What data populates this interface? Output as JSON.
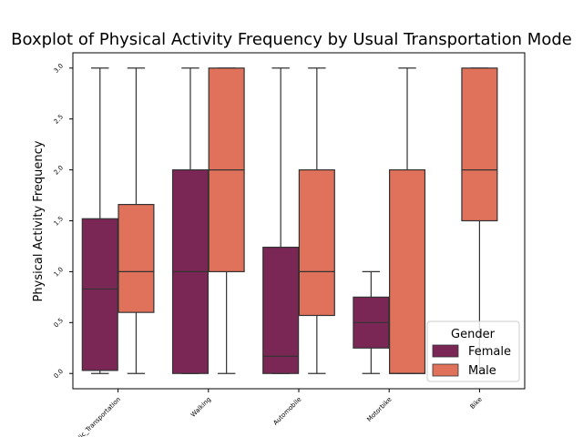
{
  "chart_data": {
    "type": "box",
    "title": "Boxplot of Physical Activity Frequency by Usual Transportation Mode",
    "xlabel": "",
    "ylabel": "Physical Activity Frequency",
    "categories": [
      "Public_Transportation",
      "Walking",
      "Automobile",
      "Motorbike",
      "Bike"
    ],
    "ylim": [
      -0.15,
      3.15
    ],
    "yticks": [
      "0.0",
      "0.5",
      "1.0",
      "1.5",
      "2.0",
      "2.5",
      "3.0"
    ],
    "grid": false,
    "legend": {
      "title": "Gender",
      "position": "lower-right"
    },
    "series": [
      {
        "name": "Female",
        "color": "#7b2756",
        "boxes": [
          {
            "whislo": 0.0,
            "q1": 0.03,
            "med": 0.83,
            "q3": 1.52,
            "whishi": 3.0
          },
          {
            "whislo": 0.0,
            "q1": 0.0,
            "med": 1.0,
            "q3": 2.0,
            "whishi": 3.0
          },
          {
            "whislo": 0.0,
            "q1": 0.0,
            "med": 0.17,
            "q3": 1.24,
            "whishi": 3.0
          },
          {
            "whislo": 0.0,
            "q1": 0.25,
            "med": 0.5,
            "q3": 0.75,
            "whishi": 1.0
          },
          null
        ]
      },
      {
        "name": "Male",
        "color": "#e0715a",
        "boxes": [
          {
            "whislo": 0.0,
            "q1": 0.6,
            "med": 1.0,
            "q3": 1.66,
            "whishi": 3.0
          },
          {
            "whislo": 0.0,
            "q1": 1.0,
            "med": 2.0,
            "q3": 3.0,
            "whishi": 3.0
          },
          {
            "whislo": 0.0,
            "q1": 0.57,
            "med": 1.0,
            "q3": 2.0,
            "whishi": 3.0
          },
          {
            "whislo": 0.0,
            "q1": 0.0,
            "med": 0.0,
            "q3": 2.0,
            "whishi": 3.0
          },
          {
            "whislo": 0.0,
            "q1": 1.5,
            "med": 2.0,
            "q3": 3.0,
            "whishi": 3.0
          }
        ]
      }
    ]
  }
}
